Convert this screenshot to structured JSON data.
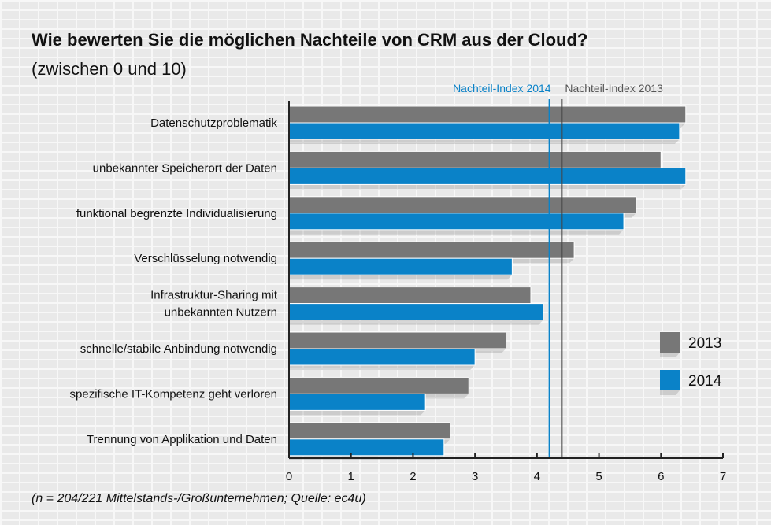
{
  "title": "Wie bewerten Sie die möglichen Nachteile von CRM aus der Cloud?",
  "subtitle": "(zwischen 0 und 10)",
  "footnote": "(n = 204/221 Mittelstands-/Großunternehmen; Quelle: ec4u)",
  "colors": {
    "s2013": "#777777",
    "s2014": "#0a82c8",
    "axis": "#222222",
    "text": "#111111"
  },
  "chart_data": {
    "type": "bar",
    "orientation": "horizontal",
    "categories": [
      [
        "Datenschutzproblematik"
      ],
      [
        "unbekannter Speicherort der Daten"
      ],
      [
        "funktional begrenzte Individualisierung"
      ],
      [
        "Verschlüsselung notwendig"
      ],
      [
        "Infrastruktur-Sharing mit",
        "unbekannten Nutzern"
      ],
      [
        "schnelle/stabile Anbindung notwendig"
      ],
      [
        "spezifische IT-Kompetenz geht verloren"
      ],
      [
        "Trennung von Applikation und Daten"
      ]
    ],
    "series": [
      {
        "name": "2013",
        "values": [
          6.4,
          6.0,
          5.6,
          4.6,
          3.9,
          3.5,
          2.9,
          2.6
        ]
      },
      {
        "name": "2014",
        "values": [
          6.3,
          6.4,
          5.4,
          3.6,
          4.1,
          3.0,
          2.2,
          2.5
        ]
      }
    ],
    "xlim": [
      0,
      7
    ],
    "xticks": [
      "0",
      "1",
      "2",
      "3",
      "4",
      "5",
      "6",
      "7"
    ],
    "reference_lines": [
      {
        "label": "Nachteil-Index 2014",
        "value": 4.2,
        "color": "#0a82c8"
      },
      {
        "label": "Nachteil-Index 2013",
        "value": 4.4,
        "color": "#444444"
      }
    ],
    "legend": [
      "2013",
      "2014"
    ],
    "legend_position": "right"
  }
}
